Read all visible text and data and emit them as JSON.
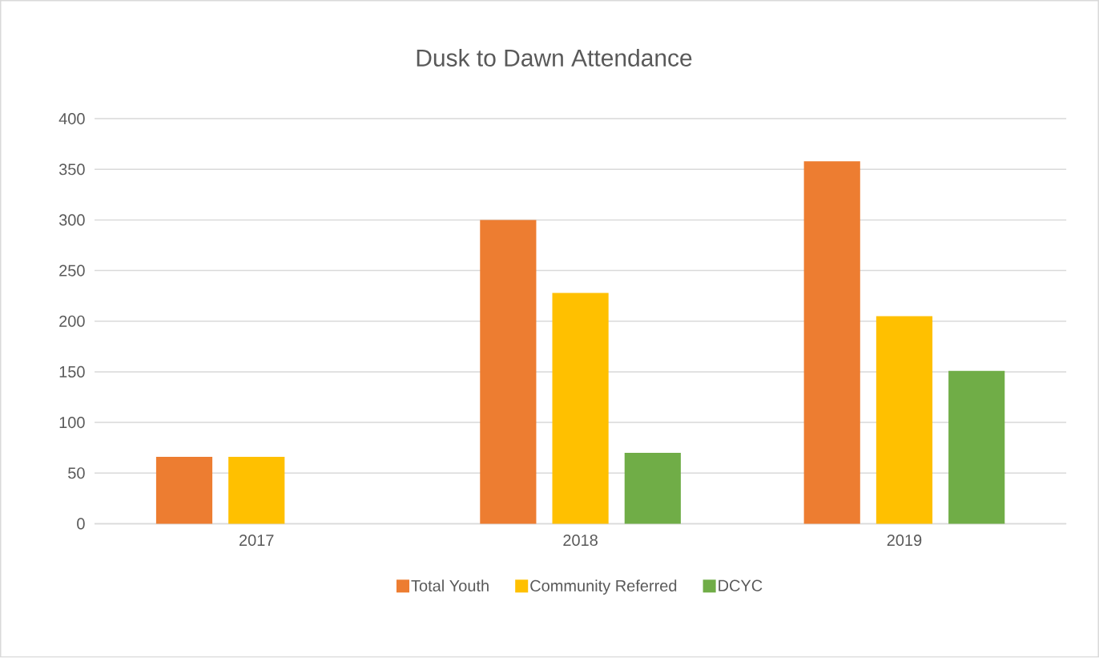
{
  "chart_data": {
    "type": "bar",
    "title": "Dusk to Dawn Attendance",
    "categories": [
      "2017",
      "2018",
      "2019"
    ],
    "series": [
      {
        "name": "Total Youth",
        "color": "#ed7d31",
        "values": [
          66,
          300,
          358
        ]
      },
      {
        "name": "Community Referred",
        "color": "#ffc000",
        "values": [
          66,
          228,
          205
        ]
      },
      {
        "name": "DCYC",
        "color": "#70ad47",
        "values": [
          null,
          70,
          151
        ]
      }
    ],
    "ylim": [
      0,
      400
    ],
    "yticks": [
      0,
      50,
      100,
      150,
      200,
      250,
      300,
      350,
      400
    ],
    "grid": "y",
    "legend": "bottom"
  }
}
